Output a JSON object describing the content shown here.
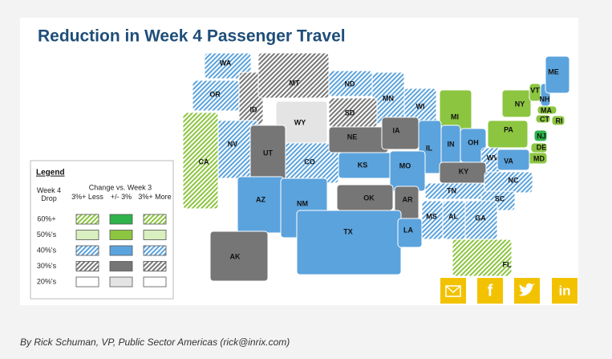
{
  "header": {
    "title": "Reduction in Week 4 Passenger Travel"
  },
  "map": {
    "states": [
      {
        "label": "WA",
        "color": "#5ba3dd",
        "hatch": true
      },
      {
        "label": "OR",
        "color": "#5ba3dd",
        "hatch": true
      },
      {
        "label": "ID",
        "color": "#767676",
        "hatch": true
      },
      {
        "label": "MT",
        "color": "#767676",
        "hatch": true
      },
      {
        "label": "ND",
        "color": "#5ba3dd",
        "hatch": true
      },
      {
        "label": "MN",
        "color": "#5ba3dd",
        "hatch": true
      },
      {
        "label": "WI",
        "color": "#5ba3dd",
        "hatch": true
      },
      {
        "label": "MI",
        "color": "#8cc540",
        "hatch": false
      },
      {
        "label": "NY",
        "color": "#8cc540",
        "hatch": false
      },
      {
        "label": "VT",
        "color": "#8cc540",
        "hatch": false
      },
      {
        "label": "NH",
        "color": "#5ba3dd",
        "hatch": false
      },
      {
        "label": "ME",
        "color": "#5ba3dd",
        "hatch": false
      },
      {
        "label": "MA",
        "color": "#8cc540",
        "hatch": false
      },
      {
        "label": "CT",
        "color": "#8cc540",
        "hatch": false
      },
      {
        "label": "RI",
        "color": "#8cc540",
        "hatch": false
      },
      {
        "label": "SD",
        "color": "#767676",
        "hatch": true
      },
      {
        "label": "WY",
        "color": "#e4e4e4",
        "hatch": false
      },
      {
        "label": "NV",
        "color": "#5ba3dd",
        "hatch": true
      },
      {
        "label": "CA",
        "color": "#8cc540",
        "hatch": true
      },
      {
        "label": "UT",
        "color": "#767676",
        "hatch": false
      },
      {
        "label": "CO",
        "color": "#5ba3dd",
        "hatch": true
      },
      {
        "label": "NE",
        "color": "#767676",
        "hatch": false
      },
      {
        "label": "IA",
        "color": "#767676",
        "hatch": false
      },
      {
        "label": "IL",
        "color": "#5ba3dd",
        "hatch": false
      },
      {
        "label": "IN",
        "color": "#5ba3dd",
        "hatch": false
      },
      {
        "label": "OH",
        "color": "#5ba3dd",
        "hatch": false
      },
      {
        "label": "PA",
        "color": "#8cc540",
        "hatch": false
      },
      {
        "label": "NJ",
        "color": "#2db34a",
        "hatch": false
      },
      {
        "label": "DE",
        "color": "#8cc540",
        "hatch": false
      },
      {
        "label": "MD",
        "color": "#8cc540",
        "hatch": false
      },
      {
        "label": "WV",
        "color": "#5ba3dd",
        "hatch": true
      },
      {
        "label": "VA",
        "color": "#5ba3dd",
        "hatch": false
      },
      {
        "label": "KS",
        "color": "#5ba3dd",
        "hatch": false
      },
      {
        "label": "MO",
        "color": "#5ba3dd",
        "hatch": false
      },
      {
        "label": "KY",
        "color": "#767676",
        "hatch": false
      },
      {
        "label": "NC",
        "color": "#5ba3dd",
        "hatch": true
      },
      {
        "label": "TN",
        "color": "#5ba3dd",
        "hatch": true
      },
      {
        "label": "SC",
        "color": "#5ba3dd",
        "hatch": true
      },
      {
        "label": "AZ",
        "color": "#5ba3dd",
        "hatch": false
      },
      {
        "label": "NM",
        "color": "#5ba3dd",
        "hatch": false
      },
      {
        "label": "OK",
        "color": "#767676",
        "hatch": false
      },
      {
        "label": "AR",
        "color": "#767676",
        "hatch": false
      },
      {
        "label": "MS",
        "color": "#5ba3dd",
        "hatch": true
      },
      {
        "label": "AL",
        "color": "#5ba3dd",
        "hatch": true
      },
      {
        "label": "GA",
        "color": "#5ba3dd",
        "hatch": true
      },
      {
        "label": "TX",
        "color": "#5ba3dd",
        "hatch": false
      },
      {
        "label": "LA",
        "color": "#5ba3dd",
        "hatch": false
      },
      {
        "label": "FL",
        "color": "#8cc540",
        "hatch": true
      },
      {
        "label": "AK",
        "color": "#767676",
        "hatch": false
      }
    ]
  },
  "legend": {
    "title": "Legend",
    "column_header": "Change vs. Week 3",
    "row_header": "Week 4 Drop",
    "columns": [
      "3%+ Less",
      "+/- 3%",
      "3%+ More"
    ],
    "rows": [
      {
        "label": "60%+",
        "swatches": [
          {
            "color": "#8cc540",
            "hatch": true
          },
          {
            "color": "#2db34a",
            "hatch": false
          },
          {
            "color": "#8cc540",
            "hatch": true
          }
        ]
      },
      {
        "label": "50%'s",
        "swatches": [
          {
            "color": "#d8efc0",
            "hatch": false
          },
          {
            "color": "#8cc540",
            "hatch": false
          },
          {
            "color": "#d8efc0",
            "hatch": false
          }
        ]
      },
      {
        "label": "40%'s",
        "swatches": [
          {
            "color": "#5ba3dd",
            "hatch": true
          },
          {
            "color": "#5ba3dd",
            "hatch": false
          },
          {
            "color": "#5ba3dd",
            "hatch": true
          }
        ]
      },
      {
        "label": "30%'s",
        "swatches": [
          {
            "color": "#767676",
            "hatch": true
          },
          {
            "color": "#767676",
            "hatch": false
          },
          {
            "color": "#767676",
            "hatch": true
          }
        ]
      },
      {
        "label": "20%'s",
        "swatches": [
          {
            "color": "#ffffff",
            "hatch": false
          },
          {
            "color": "#e4e4e4",
            "hatch": false
          },
          {
            "color": "#ffffff",
            "hatch": false
          }
        ]
      }
    ]
  },
  "social": {
    "facebook": "f",
    "linkedin": "in"
  },
  "byline": "By Rick Schuman, VP, Public Sector Americas (rick@inrix.com)"
}
